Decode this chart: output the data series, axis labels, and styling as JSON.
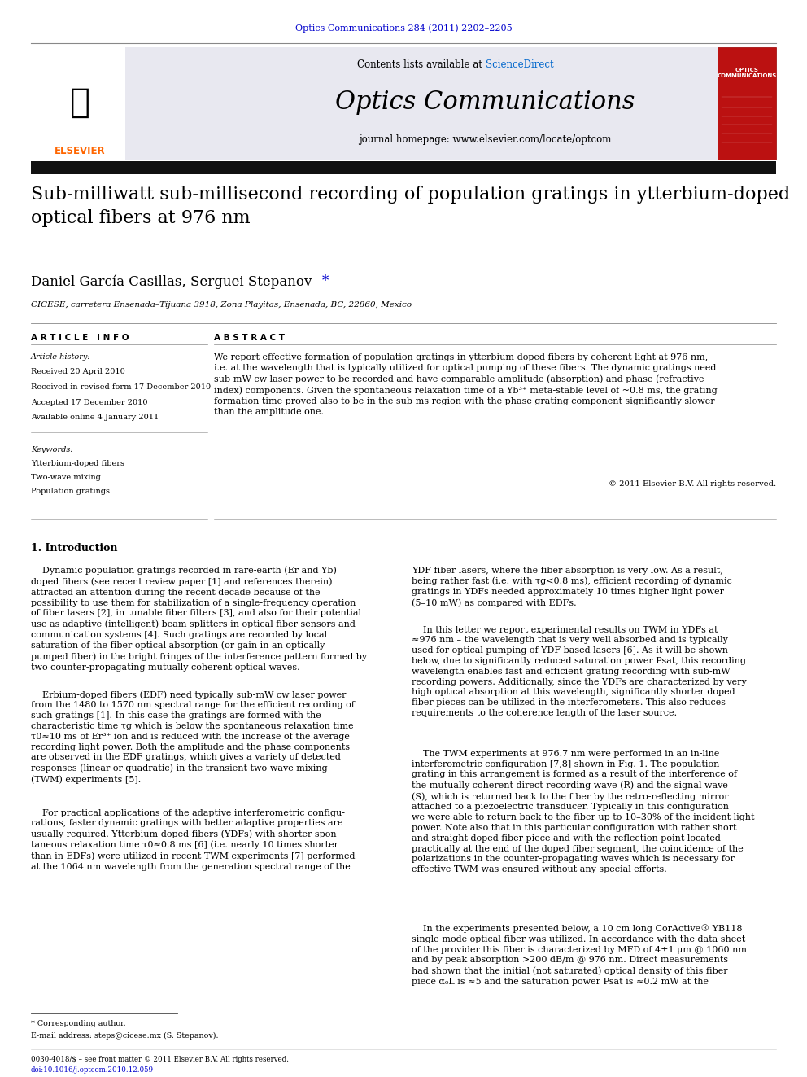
{
  "page_width": 9.92,
  "page_height": 13.23,
  "bg_color": "#ffffff",
  "journal_ref_text": "Optics Communications 284 (2011) 2202–2205",
  "journal_ref_color": "#0000cc",
  "journal_ref_fontsize": 8,
  "sciencedirect_text": "ScienceDirect",
  "sciencedirect_color": "#0066cc",
  "contents_fontsize": 9,
  "journal_title": "Optics Communications",
  "journal_title_fontsize": 22,
  "journal_homepage": "journal homepage: www.elsevier.com/locate/optcom",
  "journal_homepage_fontsize": 8.5,
  "header_bg_color": "#e8e8f0",
  "paper_title": "Sub-milliwatt sub-millisecond recording of population gratings in ytterbium-doped\noptical fibers at 976 nm",
  "paper_title_fontsize": 16,
  "authors": "Daniel García Casillas, Serguei Stepanov ",
  "author_asterisk": "*",
  "authors_fontsize": 12,
  "affiliation": "CICESE, carretera Ensenada–Tijuana 3918, Zona Playitas, Ensenada, BC, 22860, Mexico",
  "affiliation_fontsize": 7.5,
  "article_info_title": "A R T I C L E   I N F O",
  "abstract_title": "A B S T R A C T",
  "section_title_fontsize": 7.5,
  "article_history_label": "Article history:",
  "article_history_entries": [
    "Received 20 April 2010",
    "Received in revised form 17 December 2010",
    "Accepted 17 December 2010",
    "Available online 4 January 2011"
  ],
  "keywords_label": "Keywords:",
  "keywords": [
    "Ytterbium-doped fibers",
    "Two-wave mixing",
    "Population gratings"
  ],
  "abstract_text": "We report effective formation of population gratings in ytterbium-doped fibers by coherent light at 976 nm,\ni.e. at the wavelength that is typically utilized for optical pumping of these fibers. The dynamic gratings need\nsub-mW cw laser power to be recorded and have comparable amplitude (absorption) and phase (refractive\nindex) components. Given the spontaneous relaxation time of a Yb³⁺ meta-stable level of ~0.8 ms, the grating\nformation time proved also to be in the sub-ms region with the phase grating component significantly slower\nthan the amplitude one.",
  "copyright_text": "© 2011 Elsevier B.V. All rights reserved.",
  "intro_title": "1. Introduction",
  "intro_col1_para1": "    Dynamic population gratings recorded in rare-earth (Er and Yb)\ndoped fibers (see recent review paper [1] and references therein)\nattracted an attention during the recent decade because of the\npossibility to use them for stabilization of a single-frequency operation\nof fiber lasers [2], in tunable fiber filters [3], and also for their potential\nuse as adaptive (intelligent) beam splitters in optical fiber sensors and\ncommunication systems [4]. Such gratings are recorded by local\nsaturation of the fiber optical absorption (or gain in an optically\npumped fiber) in the bright fringes of the interference pattern formed by\ntwo counter-propagating mutually coherent optical waves.",
  "intro_col1_para2": "    Erbium-doped fibers (EDF) need typically sub-mW cw laser power\nfrom the 1480 to 1570 nm spectral range for the efficient recording of\nsuch gratings [1]. In this case the gratings are formed with the\ncharacteristic time τg which is below the spontaneous relaxation time\nτ0≈10 ms of Er³⁺ ion and is reduced with the increase of the average\nrecording light power. Both the amplitude and the phase components\nare observed in the EDF gratings, which gives a variety of detected\nresponses (linear or quadratic) in the transient two-wave mixing\n(TWM) experiments [5].",
  "intro_col1_para3": "    For practical applications of the adaptive interferometric configu-\nrations, faster dynamic gratings with better adaptive properties are\nusually required. Ytterbium-doped fibers (YDFs) with shorter spon-\ntaneous relaxation time τ0≈0.8 ms [6] (i.e. nearly 10 times shorter\nthan in EDFs) were utilized in recent TWM experiments [7] performed\nat the 1064 nm wavelength from the generation spectral range of the",
  "intro_col2_para1": "YDF fiber lasers, where the fiber absorption is very low. As a result,\nbeing rather fast (i.e. with τg<0.8 ms), efficient recording of dynamic\ngratings in YDFs needed approximately 10 times higher light power\n(5–10 mW) as compared with EDFs.",
  "intro_col2_para2": "    In this letter we report experimental results on TWM in YDFs at\n≈976 nm – the wavelength that is very well absorbed and is typically\nused for optical pumping of YDF based lasers [6]. As it will be shown\nbelow, due to significantly reduced saturation power Psat, this recording\nwavelength enables fast and efficient grating recording with sub-mW\nrecording powers. Additionally, since the YDFs are characterized by very\nhigh optical absorption at this wavelength, significantly shorter doped\nfiber pieces can be utilized in the interferometers. This also reduces\nrequirements to the coherence length of the laser source.",
  "intro_col2_para3": "    The TWM experiments at 976.7 nm were performed in an in-line\ninterferometric configuration [7,8] shown in Fig. 1. The population\ngrating in this arrangement is formed as a result of the interference of\nthe mutually coherent direct recording wave (R) and the signal wave\n(S), which is returned back to the fiber by the retro-reflecting mirror\nattached to a piezoelectric transducer. Typically in this configuration\nwe were able to return back to the fiber up to 10–30% of the incident light\npower. Note also that in this particular configuration with rather short\nand straight doped fiber piece and with the reflection point located\npractically at the end of the doped fiber segment, the coincidence of the\npolarizations in the counter-propagating waves which is necessary for\neffective TWM was ensured without any special efforts.",
  "intro_col2_para4": "    In the experiments presented below, a 10 cm long CorActive® YB118\nsingle-mode optical fiber was utilized. In accordance with the data sheet\nof the provider this fiber is characterized by MFD of 4±1 μm @ 1060 nm\nand by peak absorption >200 dB/m @ 976 nm. Direct measurements\nhad shown that the initial (not saturated) optical density of this fiber\npiece α₀L is ≈5 and the saturation power Psat is ≈0.2 mW at the",
  "footnote1": "* Corresponding author.",
  "footnote2": "E-mail address: steps@cicese.mx (S. Stepanov).",
  "footer1": "0030-4018/$ – see front matter © 2011 Elsevier B.V. All rights reserved.",
  "footer2": "doi:10.1016/j.optcom.2010.12.059",
  "footer_color": "#0000cc",
  "body_fontsize": 8.0,
  "small_fontsize": 7.0
}
